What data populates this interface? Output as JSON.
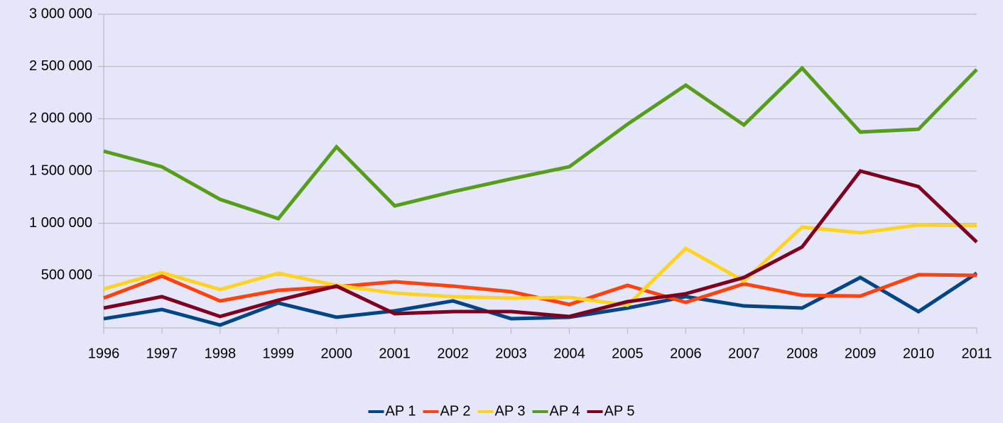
{
  "chart_data": {
    "type": "line",
    "categories": [
      "1996",
      "1997",
      "1998",
      "1999",
      "2000",
      "2001",
      "2002",
      "2003",
      "2004",
      "2005",
      "2006",
      "2007",
      "2008",
      "2009",
      "2010",
      "2011"
    ],
    "series": [
      {
        "name": "AP 1",
        "color": "#004586",
        "values": [
          88000,
          176000,
          27000,
          238000,
          102000,
          163000,
          258000,
          88000,
          102000,
          190000,
          299000,
          210000,
          190000,
          482000,
          156000,
          523000
        ]
      },
      {
        "name": "AP 2",
        "color": "#ff420e",
        "values": [
          285000,
          495000,
          258000,
          360000,
          394000,
          441000,
          400000,
          346000,
          224000,
          407000,
          244000,
          421000,
          312000,
          305000,
          509000,
          502000
        ]
      },
      {
        "name": "AP 3",
        "color": "#ffd320",
        "values": [
          373000,
          529000,
          367000,
          523000,
          407000,
          333000,
          299000,
          285000,
          292000,
          217000,
          760000,
          448000,
          964000,
          910000,
          984000,
          977000
        ]
      },
      {
        "name": "AP 4",
        "color": "#579d1c",
        "values": [
          1690000,
          1541000,
          1229000,
          1045000,
          1731000,
          1167000,
          1303000,
          1425000,
          1541000,
          1948000,
          2321000,
          1941000,
          2484000,
          1873000,
          1900000,
          2471000
        ]
      },
      {
        "name": "AP 5",
        "color": "#7e0021",
        "values": [
          190000,
          299000,
          109000,
          265000,
          400000,
          136000,
          156000,
          156000,
          109000,
          251000,
          326000,
          482000,
          774000,
          1500000,
          1351000,
          821000
        ]
      }
    ],
    "ylim": [
      0,
      3000000
    ],
    "yticks": [
      {
        "value": 500000,
        "label": "500 000"
      },
      {
        "value": 1000000,
        "label": "1 000 000"
      },
      {
        "value": 1500000,
        "label": "1 500 000"
      },
      {
        "value": 2000000,
        "label": "2 000 000"
      },
      {
        "value": 2500000,
        "label": "2 500 000"
      },
      {
        "value": 3000000,
        "label": "3 000 000"
      }
    ],
    "grid": true,
    "legend": "bottom"
  }
}
